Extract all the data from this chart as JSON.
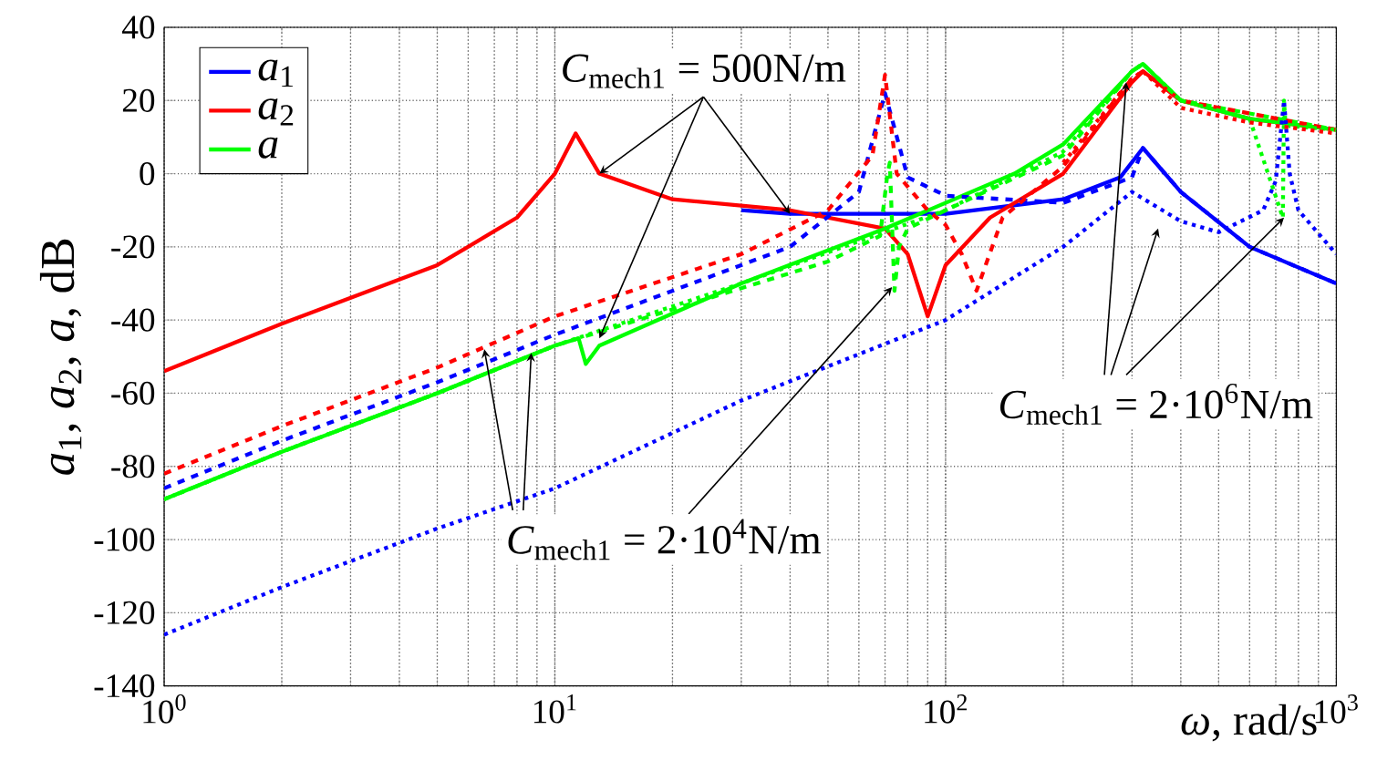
{
  "chart_data": {
    "type": "line",
    "xlabel": "*ω*, rad/s",
    "ylabel": "*a*$_{1}$, *a*$_{2}$, *a*, dB",
    "log": "x",
    "grid": true,
    "legend": "top left",
    "xlim": [
      1,
      1000
    ],
    "ylim": [
      -140,
      40
    ],
    "xticks": [
      {
        "value": 1,
        "label": "10$^{0}$"
      },
      {
        "value": 10,
        "label": "10$^{1}$"
      },
      {
        "value": 100,
        "label": "10$^{2}$"
      },
      {
        "value": 1000,
        "label": "10$^{3}$"
      }
    ],
    "yticks": [
      -140,
      -120,
      -100,
      -80,
      -60,
      -40,
      -20,
      0,
      20,
      40
    ],
    "annotations": [
      {
        "text": "*C*$_{mech1}$ = 500N/m",
        "x": 40,
        "y": -11
      },
      {
        "text": "*C*$_{mech1}$ = 2·10$^{4}$N/m",
        "x": 73,
        "y": -31
      },
      {
        "text": "*C*$_{mech1}$ = 2·10$^{6}$N/m",
        "x": 735,
        "y": -12
      }
    ],
    "series": [
      {
        "name": "*a*$_{1}$",
        "color": "#0000ff",
        "line_style": "solid",
        "x": [
          30,
          40,
          100,
          200,
          280,
          320,
          400,
          600,
          1000
        ],
        "values": [
          -10,
          -11,
          -11,
          -7,
          -1,
          7,
          -5,
          -20,
          -30
        ]
      },
      {
        "name": "*a*$_{2}$",
        "color": "#ff0000",
        "line_style": "solid",
        "x": [
          1,
          2,
          5,
          8,
          10,
          11.3,
          13,
          20,
          40,
          70,
          80,
          90,
          100,
          130,
          200,
          300,
          320,
          400,
          600,
          1000
        ],
        "values": [
          -54,
          -41,
          -25,
          -12,
          0,
          11,
          0,
          -7,
          -10,
          -15,
          -22,
          -39,
          -25,
          -12,
          0,
          25,
          28,
          20,
          15,
          12
        ]
      },
      {
        "name": "*a*",
        "color": "#00ff00",
        "line_style": "solid",
        "x": [
          1,
          2,
          5,
          10,
          11.5,
          12,
          13,
          30,
          70,
          150,
          200,
          300,
          320,
          400,
          600,
          1000
        ],
        "values": [
          -89,
          -76,
          -60,
          -47,
          -45,
          -52,
          -47,
          -30,
          -15,
          0,
          8,
          28,
          30,
          20,
          15,
          12
        ]
      },
      {
        "color": "#0000ff",
        "line_style": "dashed",
        "x": [
          1,
          2,
          5,
          10,
          40,
          60,
          70,
          80,
          100,
          200,
          300,
          320,
          400,
          600,
          1000
        ],
        "values": [
          -86,
          -73,
          -57,
          -44,
          -20,
          -5,
          22,
          -1,
          -6,
          -8,
          -1,
          7,
          -5,
          -20,
          -30
        ]
      },
      {
        "color": "#00ff00",
        "line_style": "dashed",
        "x": [
          1,
          2,
          5,
          10,
          50,
          68,
          71,
          72,
          74,
          76,
          80,
          100,
          200,
          300,
          320,
          400,
          1000
        ],
        "values": [
          -89,
          -76,
          -60,
          -47,
          -24,
          -17,
          0,
          3,
          -32,
          -20,
          -15,
          -10,
          5,
          28,
          30,
          20,
          12
        ]
      },
      {
        "color": "#ff0000",
        "line_style": "dashed",
        "x": [
          1,
          2,
          5,
          10,
          30,
          50,
          65,
          70,
          75,
          90,
          100,
          110,
          120,
          140,
          200,
          300,
          320,
          400,
          1000
        ],
        "values": [
          -82,
          -69,
          -53,
          -39,
          -22,
          -10,
          5,
          27,
          0,
          -10,
          -14,
          -22,
          -32,
          -12,
          2,
          26,
          28,
          20,
          12
        ]
      },
      {
        "color": "#0000ff",
        "line_style": "dotted",
        "x": [
          1,
          2,
          5,
          10,
          30,
          100,
          200,
          300,
          400,
          500,
          650,
          700,
          735,
          760,
          800,
          1000
        ],
        "values": [
          -126,
          -113,
          -97,
          -86,
          -62,
          -40,
          -20,
          -5,
          -13,
          -16,
          -10,
          -2,
          20,
          0,
          -10,
          -22
        ]
      },
      {
        "color": "#00ff00",
        "line_style": "dotted",
        "x": [
          1,
          2,
          5,
          10,
          30,
          100,
          200,
          300,
          320,
          400,
          600,
          730,
          735,
          740,
          760,
          1000
        ],
        "values": [
          -89,
          -76,
          -60,
          -47,
          -30,
          -10,
          6,
          28,
          30,
          20,
          15,
          -12,
          20,
          15,
          13,
          12
        ]
      },
      {
        "color": "#ff0000",
        "line_style": "dotted",
        "x": [
          200,
          300,
          320,
          400,
          600,
          1000
        ],
        "values": [
          3,
          26,
          28,
          18,
          14,
          11
        ]
      }
    ]
  }
}
